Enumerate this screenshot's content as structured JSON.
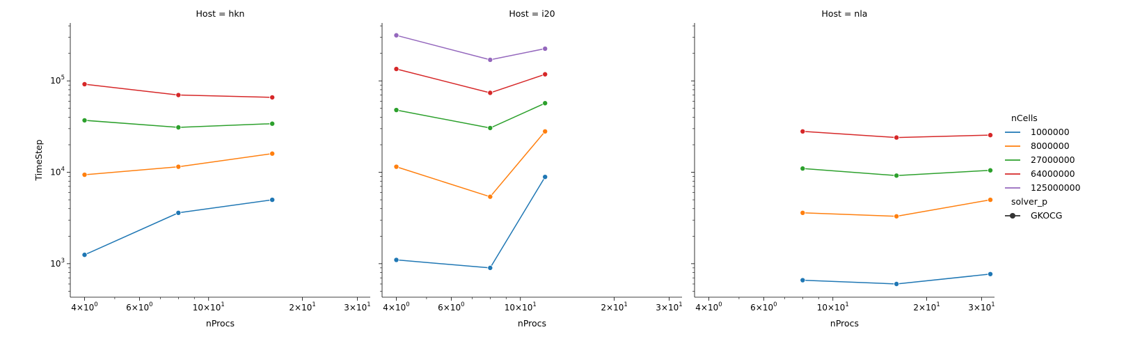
{
  "chart_data": {
    "type": "line",
    "x_scale": "log",
    "y_scale": "log",
    "xlabel": "nProcs",
    "ylabel": "TimeStep",
    "xlim": [
      3.6,
      33
    ],
    "ylim": [
      430,
      430000
    ],
    "x_ticks": [
      {
        "value": 4,
        "base": "4",
        "exp": "0"
      },
      {
        "value": 6,
        "base": "6",
        "exp": "0"
      },
      {
        "value": 10,
        "base": "10",
        "exp": "1"
      },
      {
        "value": 20,
        "base": "2",
        "exp": "1"
      },
      {
        "value": 30,
        "base": "3",
        "exp": "1"
      }
    ],
    "y_ticks": [
      {
        "value": 1000,
        "base": "10",
        "exp": "3"
      },
      {
        "value": 10000,
        "base": "10",
        "exp": "4"
      },
      {
        "value": 100000,
        "base": "10",
        "exp": "5"
      }
    ],
    "grid": false,
    "legend": {
      "placement": "right",
      "hue_title": "nCells",
      "hue_entries": [
        {
          "label": "1000000",
          "color": "#1f77b4"
        },
        {
          "label": "8000000",
          "color": "#ff7f0e"
        },
        {
          "label": "27000000",
          "color": "#2ca02c"
        },
        {
          "label": "64000000",
          "color": "#d62728"
        },
        {
          "label": "125000000",
          "color": "#9467bd"
        }
      ],
      "style_title": "solver_p",
      "style_entries": [
        {
          "label": "GKOCG",
          "color": "#333333"
        }
      ]
    },
    "panels": [
      {
        "title": "Host = hkn",
        "series": [
          {
            "name": "1000000",
            "color": "#1f77b4",
            "x": [
              4,
              8,
              16
            ],
            "y": [
              1250,
              3600,
              5000
            ]
          },
          {
            "name": "8000000",
            "color": "#ff7f0e",
            "x": [
              4,
              8,
              16
            ],
            "y": [
              9400,
              11500,
              16000
            ]
          },
          {
            "name": "27000000",
            "color": "#2ca02c",
            "x": [
              4,
              8,
              16
            ],
            "y": [
              37000,
              31000,
              34000
            ]
          },
          {
            "name": "64000000",
            "color": "#d62728",
            "x": [
              4,
              8,
              16
            ],
            "y": [
              92000,
              70000,
              66000
            ]
          }
        ]
      },
      {
        "title": "Host = i20",
        "series": [
          {
            "name": "1000000",
            "color": "#1f77b4",
            "x": [
              4,
              8,
              12
            ],
            "y": [
              1100,
              900,
              8900
            ]
          },
          {
            "name": "8000000",
            "color": "#ff7f0e",
            "x": [
              4,
              8,
              12
            ],
            "y": [
              11500,
              5400,
              28000
            ]
          },
          {
            "name": "27000000",
            "color": "#2ca02c",
            "x": [
              4,
              8,
              12
            ],
            "y": [
              48000,
              30500,
              57000
            ]
          },
          {
            "name": "64000000",
            "color": "#d62728",
            "x": [
              4,
              8,
              12
            ],
            "y": [
              135000,
              74000,
              118000
            ]
          },
          {
            "name": "125000000",
            "color": "#9467bd",
            "x": [
              4,
              8,
              12
            ],
            "y": [
              315000,
              170000,
              225000
            ]
          }
        ]
      },
      {
        "title": "Host = nla",
        "series": [
          {
            "name": "1000000",
            "color": "#1f77b4",
            "x": [
              8,
              16,
              32
            ],
            "y": [
              660,
              600,
              770
            ]
          },
          {
            "name": "8000000",
            "color": "#ff7f0e",
            "x": [
              8,
              16,
              32
            ],
            "y": [
              3600,
              3300,
              5000
            ]
          },
          {
            "name": "27000000",
            "color": "#2ca02c",
            "x": [
              8,
              16,
              32
            ],
            "y": [
              11000,
              9200,
              10500
            ]
          },
          {
            "name": "64000000",
            "color": "#d62728",
            "x": [
              8,
              16,
              32
            ],
            "y": [
              28000,
              24000,
              25500
            ]
          }
        ]
      }
    ]
  }
}
